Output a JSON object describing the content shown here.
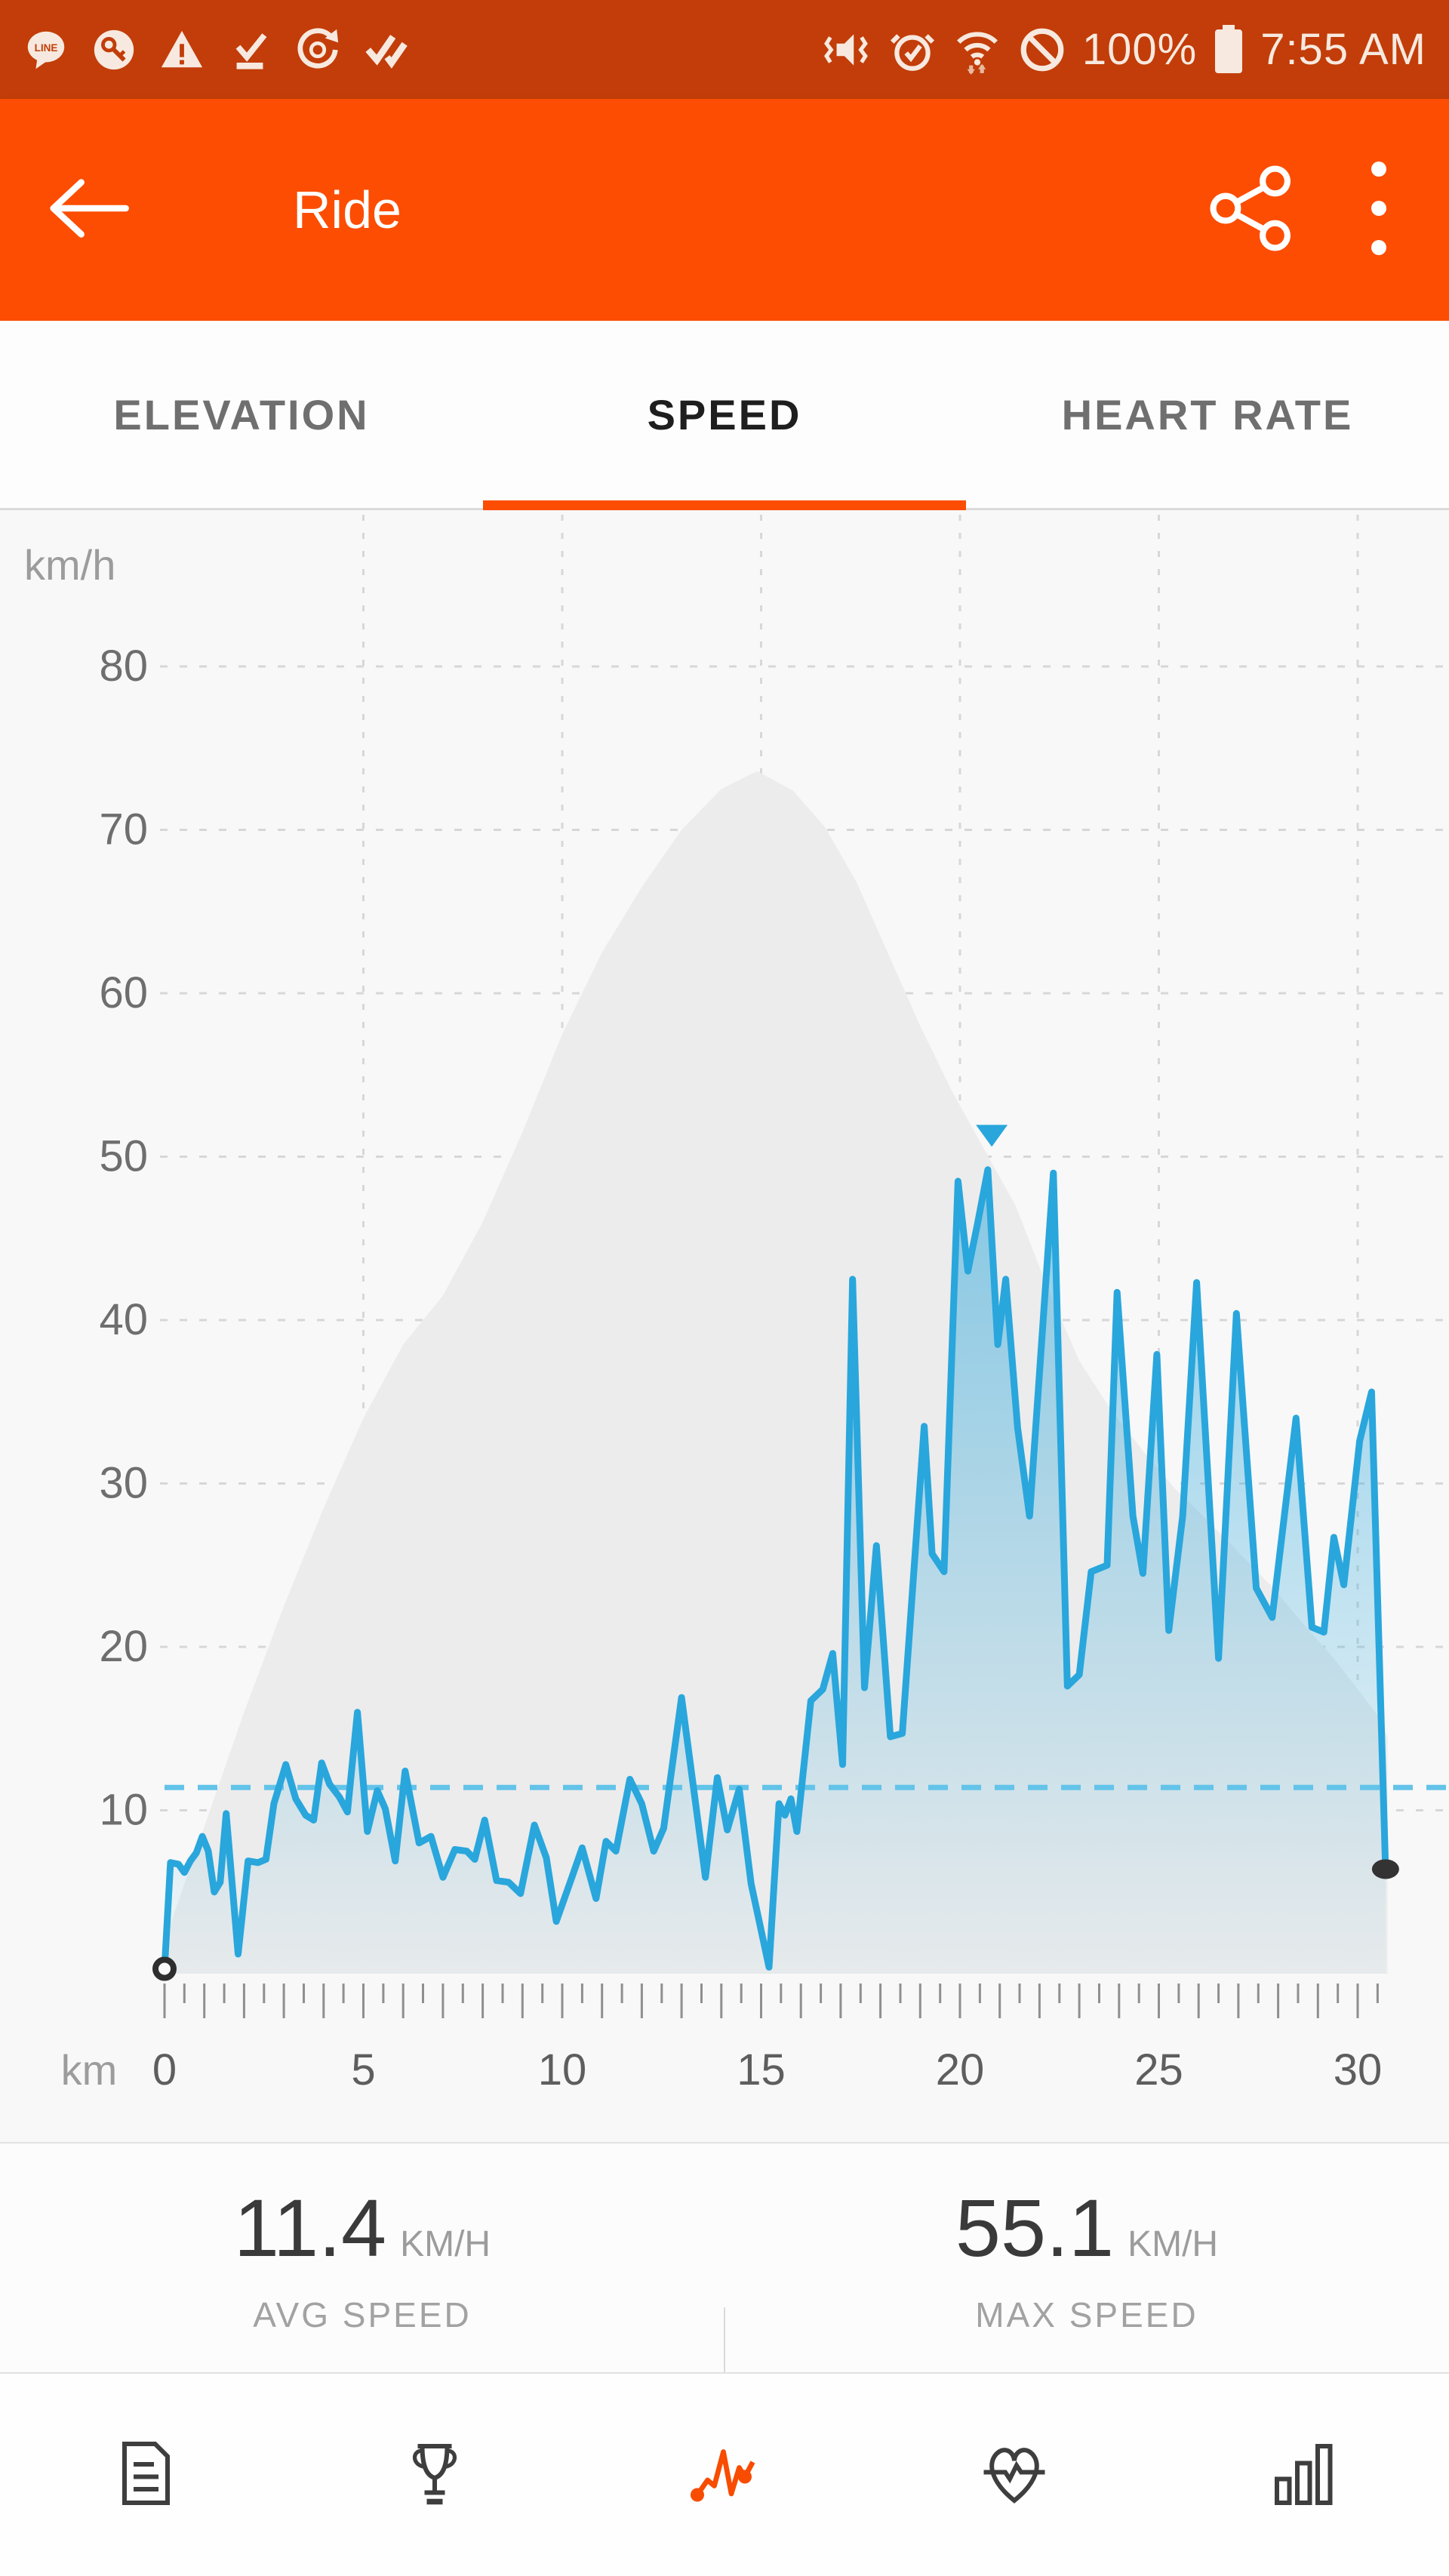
{
  "status_bar": {
    "time": "7:55 AM",
    "battery_percent": "100%",
    "left_icons": [
      "line-app-icon",
      "key-icon",
      "warning-icon",
      "check-underline-icon",
      "sync-clock-icon",
      "double-check-icon"
    ],
    "right_icons": [
      "vibrate-mute-icon",
      "alarm-check-icon",
      "wifi-arrows-icon",
      "no-signal-icon",
      "battery-icon"
    ],
    "bar_color": "#C23D09"
  },
  "app_bar": {
    "title": "Ride",
    "icons": [
      "back-arrow-icon",
      "share-icon",
      "overflow-menu-icon"
    ],
    "bar_color": "#FC4D02"
  },
  "tabs": {
    "items": [
      {
        "label": "ELEVATION",
        "active": false
      },
      {
        "label": "SPEED",
        "active": true
      },
      {
        "label": "HEART RATE",
        "active": false
      }
    ],
    "active_indicator_color": "#FC4D02"
  },
  "chart_data": {
    "type": "line",
    "title": "Speed over distance with elevation profile background",
    "x_unit_label": "km",
    "y_unit_label": "km/h",
    "x_ticks": [
      0,
      5,
      10,
      15,
      20,
      25,
      30
    ],
    "y_ticks": [
      10,
      20,
      30,
      40,
      50,
      60,
      70,
      80
    ],
    "x_range": [
      0,
      32.3
    ],
    "y_range": [
      0,
      89
    ],
    "grid": true,
    "legend_position": "none",
    "avg_speed_kmh": 11.4,
    "max_speed_kmh": 55.1,
    "max_marker": {
      "x_km": 20.8,
      "y_kmh": 51.3
    },
    "start_point": {
      "x_km": 0,
      "y_kmh": 0.3
    },
    "end_point": {
      "x_km": 30.7,
      "y_kmh": 6.4
    },
    "line_color": "#29A6DC",
    "avg_line_color": "#63C3E9",
    "elevation_fill_color": "#ECECEC",
    "speed_series": [
      [
        0,
        0.3
      ],
      [
        0.15,
        6.8
      ],
      [
        0.35,
        6.7
      ],
      [
        0.5,
        6.2
      ],
      [
        0.65,
        6.9
      ],
      [
        0.8,
        7.4
      ],
      [
        0.95,
        8.4
      ],
      [
        1.1,
        7.5
      ],
      [
        1.25,
        5.0
      ],
      [
        1.4,
        5.6
      ],
      [
        1.55,
        9.8
      ],
      [
        1.85,
        1.2
      ],
      [
        2.1,
        6.9
      ],
      [
        2.35,
        6.8
      ],
      [
        2.55,
        7.0
      ],
      [
        2.75,
        10.4
      ],
      [
        3.05,
        12.8
      ],
      [
        3.3,
        10.7
      ],
      [
        3.55,
        9.7
      ],
      [
        3.75,
        9.4
      ],
      [
        3.95,
        12.9
      ],
      [
        4.15,
        11.6
      ],
      [
        4.4,
        10.8
      ],
      [
        4.6,
        9.9
      ],
      [
        4.85,
        16.0
      ],
      [
        5.1,
        8.7
      ],
      [
        5.35,
        11.2
      ],
      [
        5.55,
        10.1
      ],
      [
        5.8,
        6.9
      ],
      [
        6.05,
        12.4
      ],
      [
        6.4,
        8.0
      ],
      [
        6.7,
        8.4
      ],
      [
        7.0,
        5.9
      ],
      [
        7.3,
        7.6
      ],
      [
        7.6,
        7.5
      ],
      [
        7.8,
        7.0
      ],
      [
        8.05,
        9.4
      ],
      [
        8.35,
        5.7
      ],
      [
        8.65,
        5.6
      ],
      [
        8.95,
        4.9
      ],
      [
        9.3,
        9.1
      ],
      [
        9.6,
        7.1
      ],
      [
        9.85,
        3.2
      ],
      [
        10.2,
        5.6
      ],
      [
        10.5,
        7.7
      ],
      [
        10.85,
        4.6
      ],
      [
        11.1,
        8.1
      ],
      [
        11.35,
        7.5
      ],
      [
        11.7,
        11.9
      ],
      [
        12.0,
        10.4
      ],
      [
        12.3,
        7.5
      ],
      [
        12.55,
        8.9
      ],
      [
        13.0,
        16.9
      ],
      [
        13.6,
        5.9
      ],
      [
        13.9,
        12.0
      ],
      [
        14.15,
        8.8
      ],
      [
        14.45,
        11.3
      ],
      [
        14.75,
        5.5
      ],
      [
        15.2,
        0.4
      ],
      [
        15.45,
        10.4
      ],
      [
        15.6,
        9.7
      ],
      [
        15.75,
        10.7
      ],
      [
        15.9,
        8.7
      ],
      [
        16.25,
        16.7
      ],
      [
        16.55,
        17.4
      ],
      [
        16.8,
        19.6
      ],
      [
        17.05,
        12.8
      ],
      [
        17.3,
        42.5
      ],
      [
        17.6,
        17.5
      ],
      [
        17.9,
        26.2
      ],
      [
        18.25,
        14.5
      ],
      [
        18.55,
        14.7
      ],
      [
        19.1,
        33.5
      ],
      [
        19.3,
        25.7
      ],
      [
        19.6,
        24.6
      ],
      [
        19.95,
        48.5
      ],
      [
        20.2,
        43.0
      ],
      [
        20.45,
        46.0
      ],
      [
        20.7,
        49.2
      ],
      [
        20.95,
        38.5
      ],
      [
        21.15,
        42.5
      ],
      [
        21.45,
        33.4
      ],
      [
        21.75,
        28.0
      ],
      [
        22.35,
        49.0
      ],
      [
        22.7,
        17.6
      ],
      [
        23.0,
        18.3
      ],
      [
        23.3,
        24.6
      ],
      [
        23.7,
        25.0
      ],
      [
        23.95,
        41.7
      ],
      [
        24.35,
        28.0
      ],
      [
        24.6,
        24.5
      ],
      [
        24.95,
        37.9
      ],
      [
        25.25,
        21.0
      ],
      [
        25.6,
        28.0
      ],
      [
        25.95,
        42.3
      ],
      [
        26.5,
        19.3
      ],
      [
        26.95,
        40.4
      ],
      [
        27.45,
        23.6
      ],
      [
        27.85,
        21.8
      ],
      [
        28.45,
        34.0
      ],
      [
        28.85,
        21.2
      ],
      [
        29.15,
        20.9
      ],
      [
        29.4,
        26.7
      ],
      [
        29.65,
        23.8
      ],
      [
        30.05,
        32.6
      ],
      [
        30.35,
        35.6
      ],
      [
        30.7,
        6.4
      ]
    ],
    "elevation_profile_scaled_to_axis": [
      [
        0,
        2
      ],
      [
        1,
        9
      ],
      [
        2,
        16
      ],
      [
        3,
        22.5
      ],
      [
        4,
        28.5
      ],
      [
        5,
        34
      ],
      [
        6,
        38.5
      ],
      [
        7,
        41.5
      ],
      [
        8,
        46
      ],
      [
        9,
        51.5
      ],
      [
        10,
        57.5
      ],
      [
        11,
        62.5
      ],
      [
        12,
        66.5
      ],
      [
        13,
        70
      ],
      [
        14,
        72.5
      ],
      [
        14.9,
        73.6
      ],
      [
        15.8,
        72.4
      ],
      [
        16.6,
        70.2
      ],
      [
        17.4,
        66.8
      ],
      [
        18.2,
        62.4
      ],
      [
        19,
        58
      ],
      [
        19.8,
        54
      ],
      [
        20.6,
        50.5
      ],
      [
        21.4,
        47
      ],
      [
        22.2,
        42
      ],
      [
        23,
        37.5
      ],
      [
        23.8,
        34.5
      ],
      [
        24.6,
        32
      ],
      [
        25.4,
        29.7
      ],
      [
        26.2,
        27.8
      ],
      [
        27,
        25.8
      ],
      [
        27.8,
        23.8
      ],
      [
        28.6,
        21.5
      ],
      [
        29.4,
        19.3
      ],
      [
        30.1,
        17.1
      ],
      [
        30.5,
        15.8
      ],
      [
        30.75,
        14.5
      ]
    ]
  },
  "stats": {
    "avg": {
      "value": "11.4",
      "unit": "KM/H",
      "label": "AVG SPEED"
    },
    "max": {
      "value": "55.1",
      "unit": "KM/H",
      "label": "MAX SPEED"
    }
  },
  "bottom_nav": {
    "items": [
      "notes-icon",
      "trophy-icon",
      "analysis-icon",
      "heart-rate-icon",
      "bar-chart-icon"
    ],
    "active_item": "analysis-icon",
    "active_color": "#F84C01"
  }
}
